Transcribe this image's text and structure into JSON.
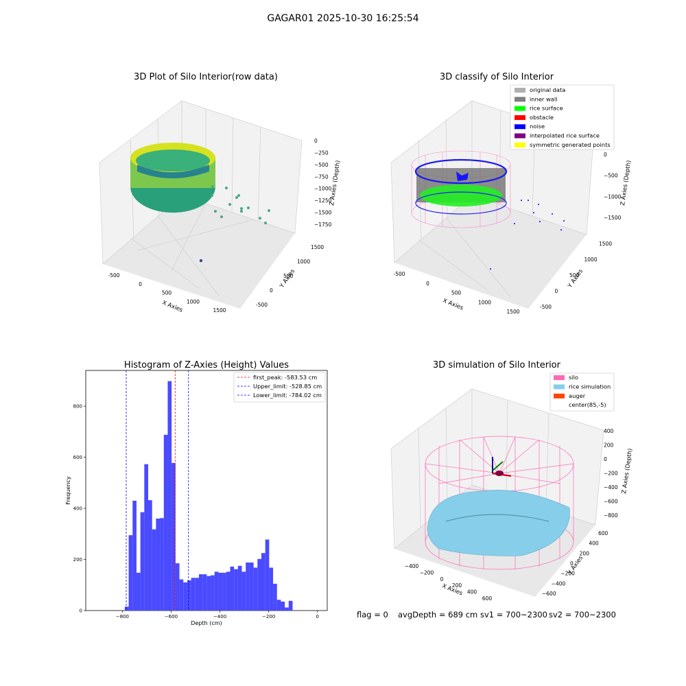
{
  "figure_title": "GAGAR01 2025-10-30 16:25:54",
  "chart_data": [
    {
      "type": "scatter3d",
      "title": "3D Plot of Silo Interior(row data)",
      "xlabel": "X Axies",
      "ylabel": "Y Axies",
      "zlabel": "Z Axies (Depth)",
      "x_ticks": [
        "-500",
        "0",
        "500",
        "1000",
        "1500"
      ],
      "y_ticks": [
        "-500",
        "0",
        "500",
        "1000",
        "1500"
      ],
      "z_ticks": [
        "0",
        "−250",
        "−500",
        "−750",
        "−1000",
        "−1250",
        "−1500",
        "−1750"
      ],
      "colormap": "viridis",
      "grid": true
    },
    {
      "type": "scatter3d",
      "title": "3D classify of Silo Interior",
      "xlabel": "X Axies",
      "ylabel": "Y Axies",
      "zlabel": "Z Axies (Depth)",
      "x_ticks": [
        "-500",
        "0",
        "500",
        "1000",
        "1500"
      ],
      "y_ticks": [
        "-500",
        "0",
        "500",
        "1000",
        "1500"
      ],
      "z_ticks": [
        "0",
        "−500",
        "−1000",
        "−1500"
      ],
      "legend_placement": "top-right",
      "legend": [
        {
          "label": "original data",
          "color": "#b0b0b0"
        },
        {
          "label": "inner wall",
          "color": "#808080"
        },
        {
          "label": "rice surface",
          "color": "#00ff00"
        },
        {
          "label": "obstacle",
          "color": "#ff0000"
        },
        {
          "label": "noise",
          "color": "#0000ff"
        },
        {
          "label": "interpolated rice surface",
          "color": "#800080"
        },
        {
          "label": "symmetric generated points",
          "color": "#ffff00"
        }
      ],
      "grid": true
    },
    {
      "type": "histogram",
      "title": "Histogram of Z-Axies (Height) Values",
      "xlabel": "Depth (cm)",
      "ylabel": "Frequency",
      "xlim": [
        -950,
        40
      ],
      "ylim": [
        0,
        940
      ],
      "x_ticks": [
        -800,
        -600,
        -400,
        -200,
        0
      ],
      "x_tick_labels": [
        "−800",
        "−600",
        "−400",
        "−200",
        "0"
      ],
      "y_ticks": [
        0,
        200,
        400,
        600,
        800
      ],
      "bar_color": "#4a4aff",
      "bin_width": 16,
      "bins": [
        [
          -790,
          15
        ],
        [
          -774,
          295
        ],
        [
          -758,
          430
        ],
        [
          -742,
          148
        ],
        [
          -726,
          385
        ],
        [
          -710,
          573
        ],
        [
          -694,
          432
        ],
        [
          -678,
          318
        ],
        [
          -662,
          360
        ],
        [
          -646,
          362
        ],
        [
          -630,
          688
        ],
        [
          -614,
          898
        ],
        [
          -598,
          578
        ],
        [
          -582,
          185
        ],
        [
          -566,
          122
        ],
        [
          -550,
          110
        ],
        [
          -534,
          118
        ],
        [
          -518,
          128
        ],
        [
          -502,
          128
        ],
        [
          -486,
          142
        ],
        [
          -470,
          142
        ],
        [
          -454,
          135
        ],
        [
          -438,
          138
        ],
        [
          -422,
          152
        ],
        [
          -406,
          148
        ],
        [
          -390,
          148
        ],
        [
          -374,
          152
        ],
        [
          -358,
          172
        ],
        [
          -342,
          162
        ],
        [
          -326,
          175
        ],
        [
          -310,
          152
        ],
        [
          -294,
          188
        ],
        [
          -278,
          188
        ],
        [
          -262,
          168
        ],
        [
          -246,
          202
        ],
        [
          -230,
          225
        ],
        [
          -214,
          278
        ],
        [
          -198,
          168
        ],
        [
          -182,
          105
        ],
        [
          -166,
          42
        ],
        [
          -150,
          35
        ],
        [
          -134,
          12
        ],
        [
          -118,
          38
        ]
      ],
      "vlines": [
        {
          "label": "first_peak: -583.53 cm",
          "x": -583.53,
          "color": "#ff0000"
        },
        {
          "label": "Upper_limit: -528.85 cm",
          "x": -528.85,
          "color": "#0000ff"
        },
        {
          "label": "Lower_limit: -784.02 cm",
          "x": -784.02,
          "color": "#0000ff"
        }
      ],
      "legend_placement": "top-right"
    },
    {
      "type": "surface3d",
      "title": "3D simulation of Silo Interior",
      "xlabel": "X Axies",
      "ylabel": "Y Axies",
      "zlabel": "Z Axies (Depth)",
      "x_ticks": [
        "−400",
        "−200",
        "0",
        "200",
        "400",
        "600"
      ],
      "y_ticks": [
        "−600",
        "−400",
        "−200",
        "0",
        "200",
        "400",
        "600"
      ],
      "z_ticks": [
        "400",
        "200",
        "0",
        "−200",
        "−400",
        "−600",
        "−800"
      ],
      "legend_placement": "top-right",
      "legend": [
        {
          "label": "silo",
          "color": "#ff69b4"
        },
        {
          "label": "rice simulation",
          "color": "#87ceeb"
        },
        {
          "label": "auger",
          "color": "#ff4500"
        },
        {
          "label": "center(85,-5)",
          "color": "#ffffff"
        }
      ],
      "grid": true
    }
  ],
  "status": {
    "flag": "flag = 0",
    "avg_depth": "avgDepth = 689 cm",
    "sv1": "sv1 = 700~2300",
    "sv2": "sv2 = 700~2300"
  }
}
